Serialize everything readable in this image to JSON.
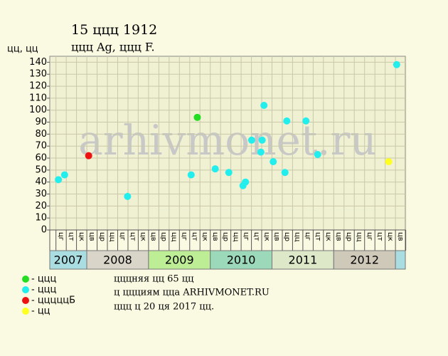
{
  "chart_data": {
    "type": "scatter",
    "title": "15 ццц 1912",
    "subtitle": "ццц Ag, ццц F.",
    "y_label": "цц, цц",
    "watermark": "arhivmonet.ru",
    "xlim": [
      2007.4,
      2013.16
    ],
    "ylim": [
      0,
      145
    ],
    "yticks": [
      0,
      10,
      20,
      30,
      40,
      50,
      60,
      70,
      80,
      90,
      100,
      110,
      120,
      130,
      140
    ],
    "grid": true,
    "xticks": [
      2007.5,
      2007.667,
      2007.833,
      2008,
      2008.167,
      2008.333,
      2008.5,
      2008.667,
      2008.833,
      2009,
      2009.167,
      2009.333,
      2009.5,
      2009.667,
      2009.833,
      2010,
      2010.167,
      2010.333,
      2010.5,
      2010.667,
      2010.833,
      2011,
      2011.167,
      2011.333,
      2011.5,
      2011.667,
      2011.833,
      2012,
      2012.167,
      2012.333,
      2012.5,
      2012.667,
      2012.833,
      2013,
      2013.167
    ],
    "period_labels": [
      "цг",
      "цт",
      "цк",
      "цв",
      "цр",
      "цц",
      "цг",
      "цт",
      "цк",
      "цв",
      "цр",
      "цц",
      "цг",
      "цт",
      "цк",
      "цв",
      "цр",
      "цц",
      "цг",
      "цт",
      "цк",
      "цв",
      "цр",
      "цц",
      "цг",
      "цт",
      "цк",
      "цв",
      "цр",
      "цц",
      "цг",
      "цт",
      "цк",
      "цв"
    ],
    "years": [
      "2007",
      "2008",
      "2009",
      "2010",
      "2011",
      "2012",
      null
    ],
    "year_starts": [
      2007,
      2008,
      2009,
      2010,
      2011,
      2012,
      2013
    ],
    "year_colors": [
      "#a9dde2",
      "#d9d5c9",
      "#bdee95",
      "#9bd9ba",
      "#dde8c9",
      "#cfc9b9",
      "#a9dde2"
    ],
    "series": [
      {
        "name": "- ццц",
        "color": "#22dd22",
        "x": [
          2009.79
        ],
        "values": [
          94
        ]
      },
      {
        "name": "- ццц",
        "color": "#22eeee",
        "x": [
          2007.54,
          2007.64,
          2008.66,
          2009.69,
          2010.08,
          2010.3,
          2010.53,
          2010.57,
          2010.67,
          2010.82,
          2010.84,
          2010.87,
          2011.02,
          2011.21,
          2011.24,
          2011.55,
          2011.74,
          2013.02
        ],
        "values": [
          42,
          46,
          28,
          46,
          51,
          48,
          37,
          40,
          75,
          65,
          75,
          104,
          57,
          48,
          91,
          91,
          63,
          138
        ]
      },
      {
        "name": "- цццццБ",
        "color": "#ee1111",
        "x": [
          2008.03
        ],
        "values": [
          62
        ]
      },
      {
        "name": "- цц",
        "color": "#ffff22",
        "x": [
          2012.89
        ],
        "values": [
          57
        ]
      }
    ],
    "notes": [
      "цццняя цц 65 цц",
      "ц ццциям цца ARHIVMONET.RU",
      "ццц ц 20 ця 2017 цц."
    ]
  }
}
